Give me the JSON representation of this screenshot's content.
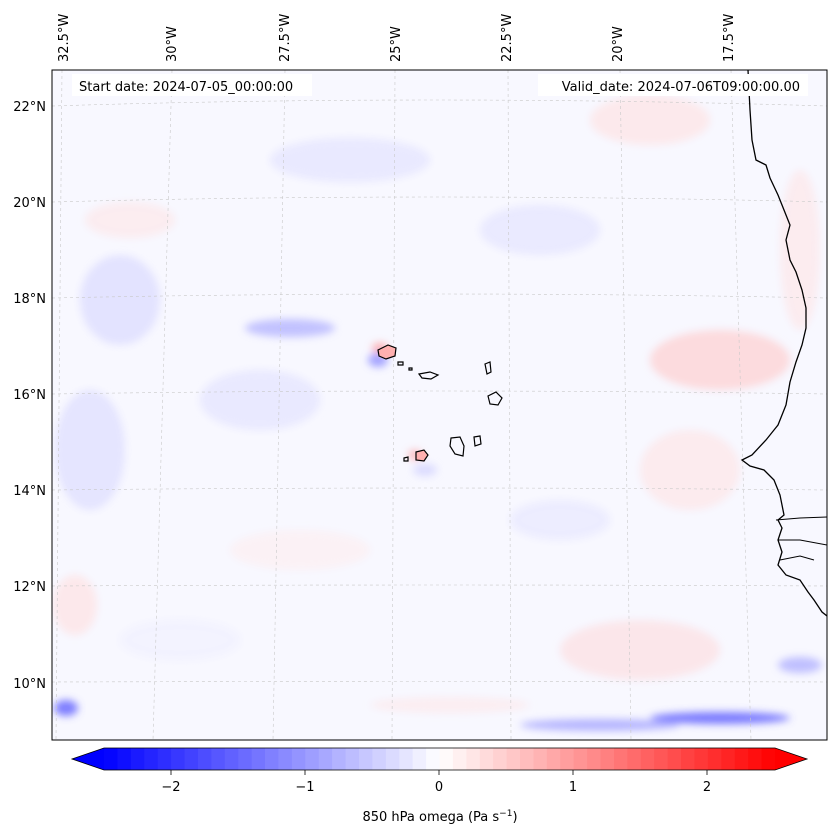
{
  "map": {
    "start_label": "Start date: 2024-07-05_00:00:00",
    "valid_label": "Valid_date: 2024-07-06T09:00:00.00",
    "lon_labels": [
      "32.5°W",
      "30°W",
      "27.5°W",
      "25°W",
      "22.5°W",
      "20°W",
      "17.5°W"
    ],
    "lat_labels": [
      "22°N",
      "20°N",
      "18°N",
      "16°N",
      "14°N",
      "12°N",
      "10°N"
    ],
    "field_colors": {
      "background": "#f8f8ff",
      "positive": "#ff0000",
      "negative": "#0000ff",
      "coastline": "#000000",
      "gridline": "#c8c8c8"
    }
  },
  "colorbar": {
    "ticks": [
      "−2",
      "−1",
      "0",
      "1",
      "2"
    ],
    "label": "850 hPa omega (Pa s",
    "label_sup": "−1",
    "label_end": ")",
    "range": [
      -2.6,
      2.6
    ],
    "colormap": "bwr"
  }
}
